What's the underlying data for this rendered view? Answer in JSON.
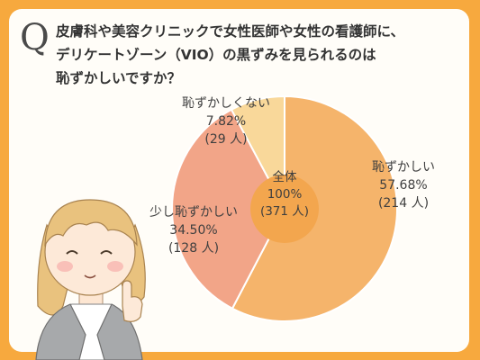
{
  "question": {
    "mark": "Q",
    "lines": [
      "皮膚科や美容クリニックで女性医師や女性の看護師に、",
      "デリケートゾーン（VIO）の黒ずみを見られるのは",
      "恥ずかしいですか？"
    ]
  },
  "chart_data": {
    "type": "pie",
    "title": "皮膚科や美容クリニックで女性医師や女性の看護師に、デリケートゾーン（VIO）の黒ずみを見られるのは恥ずかしいですか？",
    "total": {
      "label": "全体",
      "percent": "100%",
      "count": "(371 人)",
      "n": 371
    },
    "slices": [
      {
        "label": "恥ずかしい",
        "value": 57.68,
        "percent": "57.68%",
        "count": "(214 人)",
        "n": 214,
        "color": "#f5b46b"
      },
      {
        "label": "少し恥ずかしい",
        "value": 34.5,
        "percent": "34.50%",
        "count": "(128 人)",
        "n": 128,
        "color": "#f2a588"
      },
      {
        "label": "恥ずかしくない",
        "value": 7.82,
        "percent": "7.82%",
        "count": "(29 人)",
        "n": 29,
        "color": "#f9d89a"
      }
    ],
    "center_color": "#f3a64e"
  },
  "colors": {
    "background": "#f7a93e",
    "card": "#fffdf8"
  },
  "illustration": {
    "icon": "woman-pointing-illustration"
  }
}
